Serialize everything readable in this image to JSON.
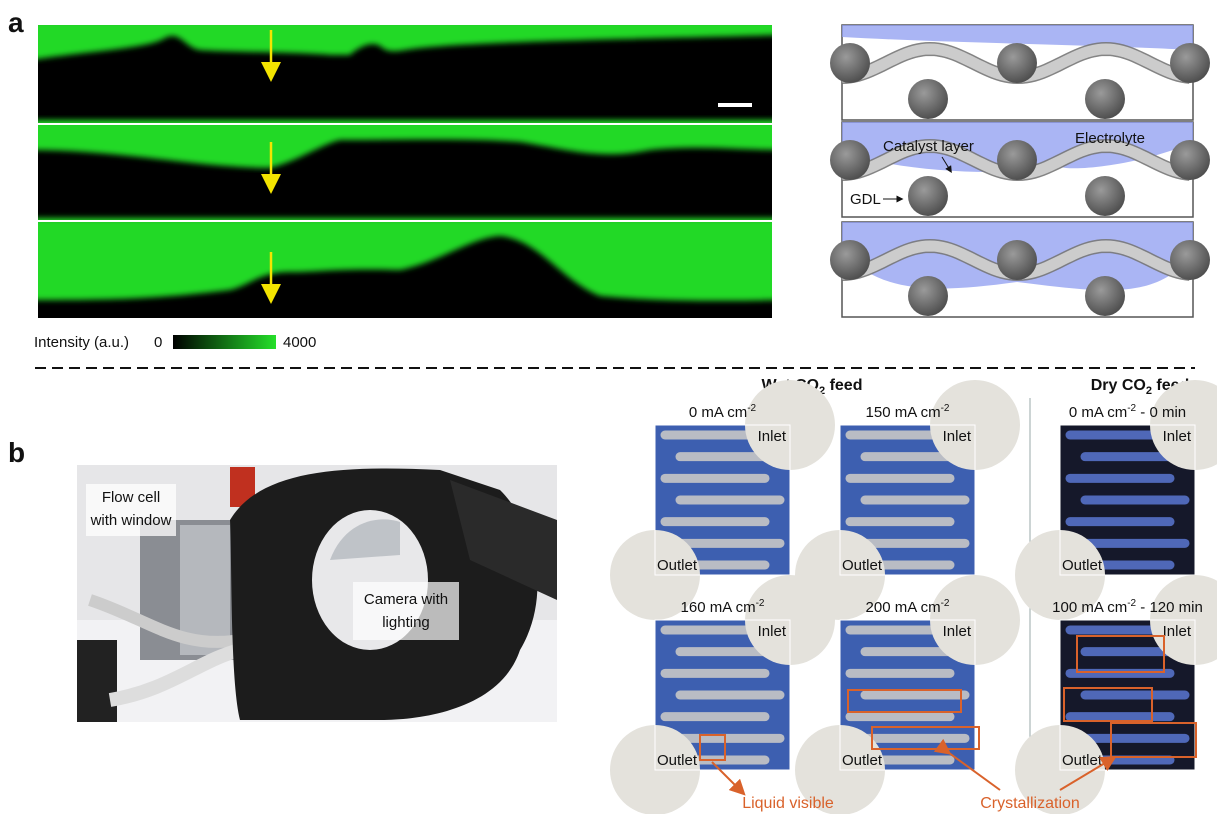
{
  "panel_a": {
    "label": "a",
    "colorbar": {
      "title": "Intensity (a.u.)",
      "min": "0",
      "max": "4000"
    },
    "schematic": {
      "catalyst_layer": "Catalyst layer",
      "electrolyte": "Electrolyte",
      "gdl": "GDL"
    }
  },
  "panel_b": {
    "label": "b",
    "photo": {
      "flow_cell": [
        "Flow cell",
        "with window"
      ],
      "camera": [
        "Camera with",
        "lighting"
      ]
    },
    "wet_feed": {
      "title": {
        "text": "Wet CO",
        "sub": "2",
        "rest": " feed"
      },
      "images": [
        {
          "current": "0  mA cm",
          "sup": "-2",
          "inlet": "Inlet",
          "outlet": "Outlet"
        },
        {
          "current": "150 mA cm",
          "sup": "-2",
          "inlet": "Inlet",
          "outlet": "Outlet"
        },
        {
          "current": "160 mA cm",
          "sup": "-2",
          "inlet": "Inlet",
          "outlet": "Outlet"
        },
        {
          "current": "200 mA cm",
          "sup": "-2",
          "inlet": "Inlet",
          "outlet": "Outlet"
        }
      ]
    },
    "dry_feed": {
      "title": {
        "text": "Dry CO",
        "sub": "2",
        "rest": " feed"
      },
      "images": [
        {
          "current": "0 mA cm",
          "sup": "-2",
          "rest": " - 0 min",
          "inlet": "Inlet",
          "outlet": "Outlet"
        },
        {
          "current": "100 mA cm",
          "sup": "-2",
          "rest": " - 120 min",
          "inlet": "Inlet",
          "outlet": "Outlet"
        }
      ]
    },
    "annotations": {
      "liquid": "Liquid visible",
      "crystallization": "Crystallization"
    }
  }
}
